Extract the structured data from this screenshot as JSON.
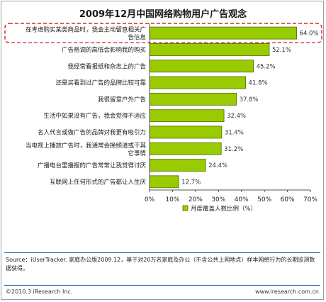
{
  "chart_data": {
    "type": "bar",
    "orientation": "horizontal",
    "title": "2009年12月中国网络购物用户广告观念",
    "categories": [
      "在考虑购买某类商品时，我会主动留意相关广告信息",
      "广告格调的高低会影响我的购买",
      "我经常看报纸和杂志上的广告",
      "还是买看到过广告的品牌比较可靠",
      "我很留意户外广告",
      "生活中如果没有广告，我会觉得不适应",
      "名人代言或做广告的品牌对我更有吸引力",
      "当电视上播放广告时，我通常会换频道或干其它事情",
      "广播电台里播报的广告常常让我觉得讨厌",
      "互联网上任何形式的广告都让人生厌"
    ],
    "values": [
      64.0,
      52.1,
      45.2,
      41.8,
      37.8,
      32.4,
      31.4,
      31.2,
      24.4,
      12.7
    ],
    "value_labels": [
      "64.0%",
      "52.1%",
      "45.2%",
      "41.8%",
      "37.8%",
      "32.4%",
      "31.4%",
      "31.2%",
      "24.4%",
      "12.7%"
    ],
    "xlim": [
      0,
      70
    ],
    "xticks": [
      "0%",
      "10%",
      "20%",
      "30%",
      "40%",
      "50%",
      "60%",
      "70%"
    ],
    "legend": {
      "label": "月度覆盖人数比例（%）",
      "placement": "bottom-center"
    },
    "highlighted_category_index": 0,
    "bar_color": "#99cc00",
    "bar_edge_color": "#4a6e00",
    "highlight_color": "#cc0000",
    "grid": false
  },
  "source": "Source：iUserTracker. 家庭办公版2009.12，基于对20万名家庭及办公（不含公共上网地点）样本网络行为的长期监测数据获得。",
  "footer": {
    "copyright": "©2010.3 iResearch Inc.",
    "website": "www.iresearch.com.cn"
  },
  "colors": {
    "divider": "#1f6bb8",
    "frame": "#9e9e9e"
  }
}
